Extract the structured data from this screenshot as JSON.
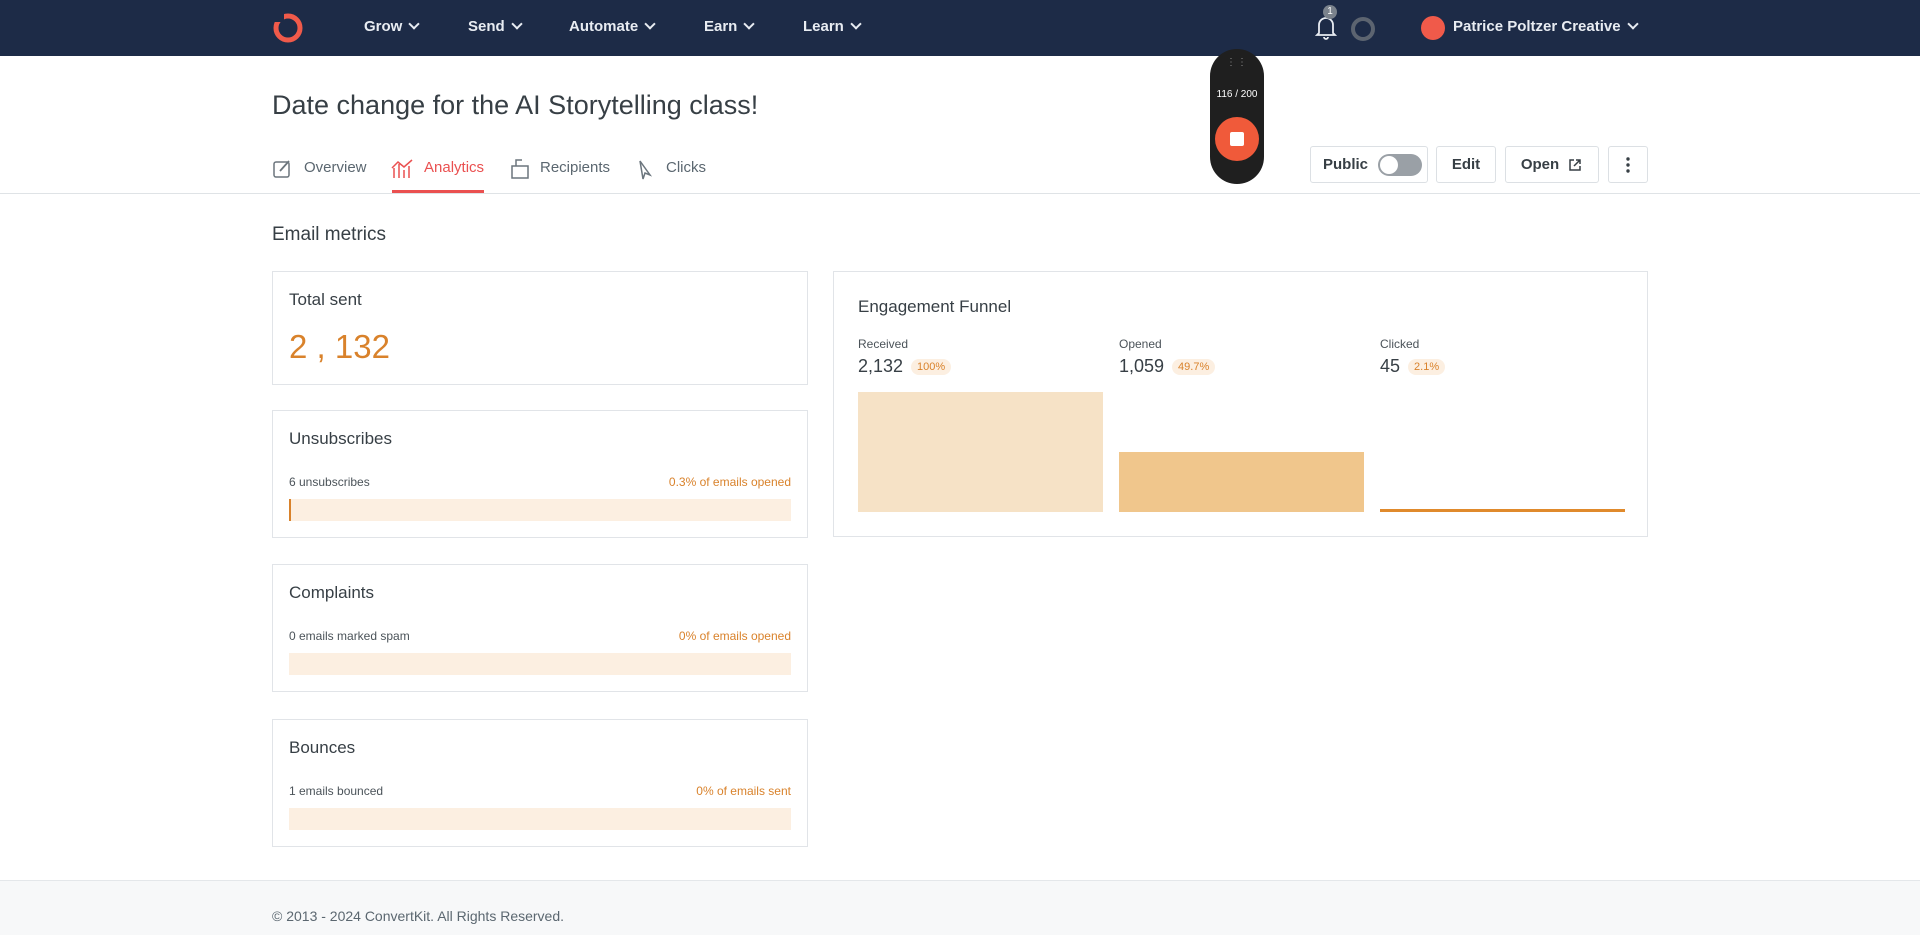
{
  "nav": {
    "items": [
      "Grow",
      "Send",
      "Automate",
      "Earn",
      "Learn"
    ],
    "notifications": "1",
    "account": "Patrice Poltzer Creative"
  },
  "recorder": {
    "counter": "116 / 200"
  },
  "header": {
    "title": "Date change for the AI Storytelling class!",
    "tabs": [
      "Overview",
      "Analytics",
      "Recipients",
      "Clicks"
    ],
    "actions": {
      "public": "Public",
      "edit": "Edit",
      "open": "Open"
    }
  },
  "metrics": {
    "title": "Email metrics",
    "total_sent": {
      "title": "Total sent",
      "value": "2 , 132"
    },
    "cards": [
      {
        "title": "Unsubscribes",
        "detail": "6 unsubscribes",
        "rate": {
          "value": 0.3,
          "label": "0.3% of emails opened"
        }
      },
      {
        "title": "Complaints",
        "detail": "0 emails marked spam",
        "rate": {
          "value": 0,
          "label": "0% of emails opened"
        }
      },
      {
        "title": "Bounces",
        "detail": "1 emails bounced",
        "rate": {
          "value": 0,
          "label": "0% of emails sent"
        }
      }
    ]
  },
  "funnel": {
    "title": "Engagement Funnel",
    "stages": [
      {
        "label": "Received",
        "count": "2,132",
        "percent": {
          "value": 100,
          "label": "100%"
        },
        "color": "#f6e2c6"
      },
      {
        "label": "Opened",
        "count": "1,059",
        "percent": {
          "value": 49.7,
          "label": "49.7%"
        },
        "color": "#f0c68c"
      },
      {
        "label": "Clicked",
        "count": "45",
        "percent": {
          "value": 2.1,
          "label": "2.1%"
        },
        "color": "#e08a2c"
      }
    ]
  },
  "footer": "© 2013 - 2024 ConvertKit. All Rights Reserved."
}
